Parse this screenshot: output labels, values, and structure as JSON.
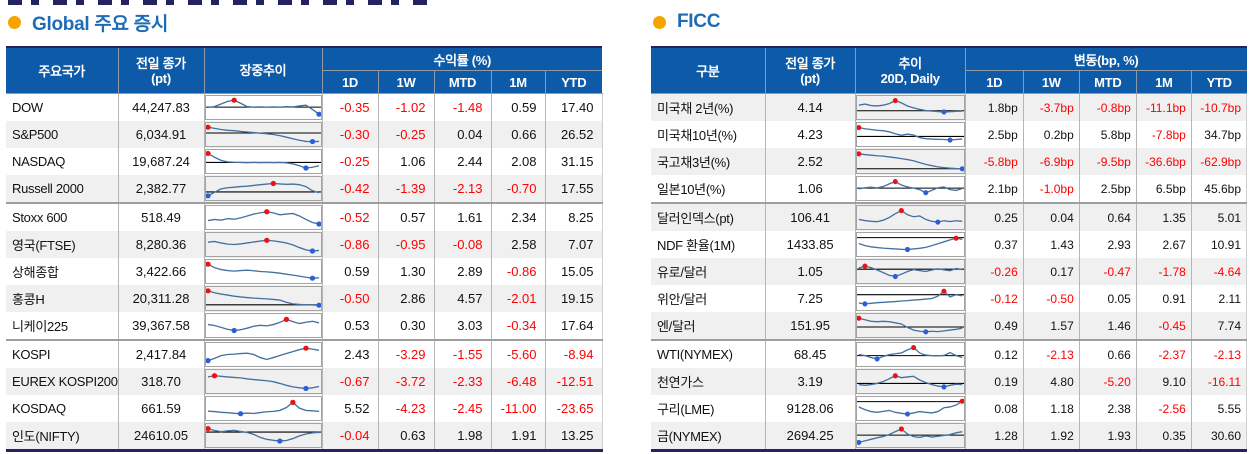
{
  "colors": {
    "header_bg": "#0d5aa8",
    "title_blue": "#1e6cb5",
    "bullet_orange": "#F7A400",
    "negative_red": "#fe0000",
    "text_dark": "#111111",
    "stripe_gray": "#f0f0f0",
    "spark_line": "#44719f",
    "spark_max_dot": "#ee1111",
    "spark_min_dot": "#2b5fd9",
    "spark_ref_line": "#000000",
    "table_frame": "#23235f"
  },
  "left_table": {
    "title": "Global 주요 증시",
    "headers": {
      "name": "주요국가",
      "close_lines": [
        "전일 종가",
        "(pt)"
      ],
      "trend_lines": [
        "장중추이"
      ],
      "returns_group": "수익률 (%)",
      "periods": [
        "1D",
        "1W",
        "MTD",
        "1M",
        "YTD"
      ]
    },
    "rows": [
      {
        "name": "DOW",
        "close": "44,247.83",
        "values": [
          "-0.35",
          "-1.02",
          "-1.48",
          "0.59",
          "17.40"
        ],
        "shade": false,
        "sep": false,
        "ref": 0.52,
        "spark": [
          0.5,
          0.55,
          0.68,
          0.82,
          0.88,
          0.72,
          0.55,
          0.52,
          0.53,
          0.52,
          0.53,
          0.52,
          0.54,
          0.53,
          0.58,
          0.62,
          0.4,
          0.15
        ]
      },
      {
        "name": "S&P500",
        "close": "6,034.91",
        "values": [
          "-0.30",
          "-0.25",
          "0.04",
          "0.66",
          "26.52"
        ],
        "shade": true,
        "sep": false,
        "ref": 0.58,
        "spark": [
          0.88,
          0.82,
          0.76,
          0.72,
          0.7,
          0.66,
          0.63,
          0.6,
          0.57,
          0.54,
          0.5,
          0.44,
          0.36,
          0.28,
          0.2,
          0.14,
          0.13,
          0.14
        ]
      },
      {
        "name": "NASDAQ",
        "close": "19,687.24",
        "values": [
          "-0.25",
          "1.06",
          "2.44",
          "2.08",
          "31.15"
        ],
        "shade": false,
        "sep": false,
        "ref": 0.45,
        "spark": [
          0.92,
          0.72,
          0.56,
          0.48,
          0.46,
          0.45,
          0.44,
          0.45,
          0.44,
          0.45,
          0.44,
          0.45,
          0.43,
          0.38,
          0.28,
          0.16,
          0.2,
          0.28
        ]
      },
      {
        "name": "Russell 2000",
        "close": "2,382.77",
        "values": [
          "-0.42",
          "-1.39",
          "-2.13",
          "-0.70",
          "17.55"
        ],
        "shade": true,
        "sep": false,
        "ref": 0.32,
        "spark": [
          0.12,
          0.3,
          0.48,
          0.54,
          0.57,
          0.6,
          0.62,
          0.66,
          0.7,
          0.73,
          0.76,
          0.74,
          0.72,
          0.73,
          0.7,
          0.6,
          0.38,
          0.28
        ]
      },
      {
        "name": "Stoxx 600",
        "close": "518.49",
        "values": [
          "-0.52",
          "0.57",
          "1.61",
          "2.34",
          "8.25"
        ],
        "shade": false,
        "sep": true,
        "ref": null,
        "spark": [
          0.34,
          0.4,
          0.36,
          0.44,
          0.41,
          0.48,
          0.58,
          0.68,
          0.74,
          0.8,
          0.74,
          0.64,
          0.68,
          0.71,
          0.58,
          0.4,
          0.24,
          0.16
        ]
      },
      {
        "name": "영국(FTSE)",
        "close": "8,280.36",
        "values": [
          "-0.86",
          "-0.95",
          "-0.08",
          "2.58",
          "7.07"
        ],
        "shade": true,
        "sep": false,
        "ref": null,
        "spark": [
          0.62,
          0.66,
          0.58,
          0.52,
          0.5,
          0.53,
          0.58,
          0.63,
          0.68,
          0.72,
          0.69,
          0.64,
          0.58,
          0.48,
          0.34,
          0.22,
          0.16,
          0.19
        ]
      },
      {
        "name": "상해종합",
        "close": "3,422.66",
        "values": [
          "0.59",
          "1.30",
          "2.89",
          "-0.86",
          "15.05"
        ],
        "shade": false,
        "sep": false,
        "ref": null,
        "spark": [
          0.88,
          0.7,
          0.6,
          0.55,
          0.52,
          0.55,
          0.57,
          0.54,
          0.5,
          0.48,
          0.45,
          0.41,
          0.36,
          0.31,
          0.26,
          0.2,
          0.15,
          0.17
        ]
      },
      {
        "name": "홍콩H",
        "close": "20,311.28",
        "values": [
          "-0.50",
          "2.86",
          "4.57",
          "-2.01",
          "19.15"
        ],
        "shade": true,
        "sep": false,
        "ref": 0.17,
        "spark": [
          0.9,
          0.8,
          0.73,
          0.68,
          0.62,
          0.58,
          0.55,
          0.52,
          0.5,
          0.48,
          0.45,
          0.42,
          0.3,
          0.22,
          0.19,
          0.17,
          0.16,
          0.15
        ]
      },
      {
        "name": "니케이225",
        "close": "39,367.58",
        "values": [
          "0.53",
          "0.30",
          "3.03",
          "-0.34",
          "17.64"
        ],
        "shade": false,
        "sep": false,
        "ref": null,
        "spark": [
          0.55,
          0.5,
          0.4,
          0.3,
          0.24,
          0.28,
          0.36,
          0.46,
          0.51,
          0.48,
          0.55,
          0.66,
          0.82,
          0.7,
          0.6,
          0.67,
          0.72,
          0.64
        ]
      },
      {
        "name": "KOSPI",
        "close": "2,417.84",
        "values": [
          "2.43",
          "-3.29",
          "-1.55",
          "-5.60",
          "-8.94"
        ],
        "shade": false,
        "sep": true,
        "ref": null,
        "spark": [
          0.18,
          0.3,
          0.44,
          0.5,
          0.52,
          0.55,
          0.57,
          0.5,
          0.34,
          0.24,
          0.34,
          0.45,
          0.55,
          0.65,
          0.75,
          0.83,
          0.78,
          0.72
        ]
      },
      {
        "name": "EUREX KOSPI200",
        "close": "318.70",
        "values": [
          "-0.67",
          "-3.72",
          "-2.33",
          "-6.48",
          "-12.51"
        ],
        "shade": true,
        "sep": false,
        "ref": null,
        "spark": [
          0.74,
          0.8,
          0.77,
          0.74,
          0.71,
          0.69,
          0.64,
          0.6,
          0.57,
          0.54,
          0.49,
          0.4,
          0.3,
          0.22,
          0.17,
          0.14,
          0.17,
          0.24
        ]
      },
      {
        "name": "KOSDAQ",
        "close": "661.59",
        "values": [
          "5.52",
          "-4.23",
          "-2.45",
          "-11.00",
          "-23.65"
        ],
        "shade": false,
        "sep": false,
        "ref": null,
        "spark": [
          0.36,
          0.34,
          0.3,
          0.28,
          0.25,
          0.23,
          0.26,
          0.24,
          0.29,
          0.33,
          0.35,
          0.4,
          0.55,
          0.82,
          0.52,
          0.4,
          0.38,
          0.35
        ]
      },
      {
        "name": "인도(NIFTY)",
        "close": "24610.05",
        "values": [
          "-0.04",
          "0.63",
          "1.98",
          "1.91",
          "13.25"
        ],
        "shade": true,
        "sep": false,
        "ref": 0.68,
        "spark": [
          0.86,
          0.76,
          0.7,
          0.74,
          0.77,
          0.71,
          0.66,
          0.56,
          0.4,
          0.3,
          0.25,
          0.21,
          0.24,
          0.34,
          0.48,
          0.58,
          0.64,
          0.66
        ]
      }
    ]
  },
  "right_table": {
    "title": "FICC",
    "headers": {
      "name": "구분",
      "close_lines": [
        "전일 종가",
        "(pt)"
      ],
      "trend_lines": [
        "추이",
        "20D, Daily"
      ],
      "returns_group": "변동(bp, %)",
      "periods": [
        "1D",
        "1W",
        "MTD",
        "1M",
        "YTD"
      ]
    },
    "rows": [
      {
        "name": "미국채 2년(%)",
        "close": "4.14",
        "values": [
          "1.8bp",
          "-3.7bp",
          "-0.8bp",
          "-11.1bp",
          "-10.7bp"
        ],
        "shade": true,
        "sep": false,
        "ref": 0.33,
        "spark": [
          0.62,
          0.68,
          0.6,
          0.58,
          0.62,
          0.7,
          0.86,
          0.74,
          0.58,
          0.48,
          0.4,
          0.34,
          0.31,
          0.29,
          0.27,
          0.28,
          0.3,
          0.31
        ]
      },
      {
        "name": "미국채10년(%)",
        "close": "4.23",
        "values": [
          "2.5bp",
          "0.2bp",
          "5.8bp",
          "-7.8bp",
          "34.7bp"
        ],
        "shade": false,
        "sep": false,
        "ref": 0.4,
        "spark": [
          0.86,
          0.8,
          0.76,
          0.72,
          0.7,
          0.64,
          0.54,
          0.46,
          0.52,
          0.47,
          0.34,
          0.28,
          0.26,
          0.25,
          0.24,
          0.21,
          0.24,
          0.27
        ]
      },
      {
        "name": "국고채3년(%)",
        "close": "2.52",
        "values": [
          "-5.8bp",
          "-6.9bp",
          "-9.5bp",
          "-36.6bp",
          "-62.9bp"
        ],
        "shade": true,
        "sep": false,
        "ref": 0.12,
        "spark": [
          0.9,
          0.86,
          0.83,
          0.8,
          0.78,
          0.74,
          0.7,
          0.65,
          0.6,
          0.54,
          0.44,
          0.35,
          0.28,
          0.22,
          0.18,
          0.15,
          0.13,
          0.12
        ]
      },
      {
        "name": "일본10년(%)",
        "close": "1.06",
        "values": [
          "2.1bp",
          "-1.0bp",
          "2.5bp",
          "6.5bp",
          "45.6bp"
        ],
        "shade": false,
        "sep": false,
        "ref": 0.52,
        "spark": [
          0.48,
          0.54,
          0.57,
          0.53,
          0.6,
          0.74,
          0.86,
          0.68,
          0.58,
          0.52,
          0.44,
          0.28,
          0.4,
          0.54,
          0.58,
          0.44,
          0.4,
          0.5
        ]
      },
      {
        "name": "달러인덱스(pt)",
        "close": "106.41",
        "values": [
          "0.25",
          "0.04",
          "0.64",
          "1.35",
          "5.01"
        ],
        "shade": true,
        "sep": true,
        "ref": null,
        "spark": [
          0.4,
          0.34,
          0.3,
          0.28,
          0.36,
          0.5,
          0.7,
          0.86,
          0.64,
          0.54,
          0.58,
          0.4,
          0.3,
          0.26,
          0.33,
          0.29,
          0.33,
          0.3
        ]
      },
      {
        "name": "NDF 환율(1M)",
        "close": "1433.85",
        "values": [
          "0.37",
          "1.43",
          "2.93",
          "2.67",
          "10.91"
        ],
        "shade": false,
        "sep": false,
        "ref": 0.86,
        "spark": [
          0.55,
          0.44,
          0.38,
          0.34,
          0.31,
          0.29,
          0.27,
          0.25,
          0.24,
          0.27,
          0.3,
          0.35,
          0.44,
          0.54,
          0.64,
          0.74,
          0.83,
          0.77
        ]
      },
      {
        "name": "유로/달러",
        "close": "1.05",
        "values": [
          "-0.26",
          "0.17",
          "-0.47",
          "-1.78",
          "-4.64"
        ],
        "shade": true,
        "sep": false,
        "ref": 0.62,
        "spark": [
          0.68,
          0.78,
          0.7,
          0.58,
          0.44,
          0.3,
          0.24,
          0.36,
          0.5,
          0.6,
          0.55,
          0.5,
          0.58,
          0.64,
          0.59,
          0.54,
          0.66,
          0.6
        ]
      },
      {
        "name": "위안/달러",
        "close": "7.25",
        "values": [
          "-0.12",
          "-0.50",
          "0.05",
          "0.91",
          "2.11"
        ],
        "shade": false,
        "sep": false,
        "ref": 0.7,
        "spark": [
          0.26,
          0.22,
          0.25,
          0.28,
          0.3,
          0.32,
          0.34,
          0.37,
          0.39,
          0.42,
          0.44,
          0.47,
          0.5,
          0.62,
          0.88,
          0.58,
          0.7,
          0.64
        ]
      },
      {
        "name": "엔/달러",
        "close": "151.95",
        "values": [
          "0.49",
          "1.57",
          "1.46",
          "-0.45",
          "7.74"
        ],
        "shade": true,
        "sep": false,
        "ref": 0.42,
        "spark": [
          0.88,
          0.8,
          0.72,
          0.7,
          0.72,
          0.7,
          0.64,
          0.58,
          0.4,
          0.26,
          0.2,
          0.17,
          0.2,
          0.18,
          0.22,
          0.26,
          0.3,
          0.36
        ]
      },
      {
        "name": "WTI(NYMEX)",
        "close": "68.45",
        "values": [
          "0.12",
          "-2.13",
          "0.66",
          "-2.37",
          "-2.13"
        ],
        "shade": false,
        "sep": true,
        "ref": 0.44,
        "spark": [
          0.5,
          0.44,
          0.34,
          0.27,
          0.4,
          0.49,
          0.54,
          0.58,
          0.74,
          0.86,
          0.58,
          0.47,
          0.44,
          0.43,
          0.45,
          0.6,
          0.44,
          0.34
        ]
      },
      {
        "name": "천연가스",
        "close": "3.19",
        "values": [
          "0.19",
          "4.80",
          "-5.20",
          "9.10",
          "-16.11"
        ],
        "shade": true,
        "sep": false,
        "ref": 0.4,
        "spark": [
          0.34,
          0.3,
          0.34,
          0.4,
          0.5,
          0.64,
          0.8,
          0.7,
          0.74,
          0.77,
          0.58,
          0.44,
          0.34,
          0.26,
          0.22,
          0.3,
          0.36,
          0.34
        ]
      },
      {
        "name": "구리(LME)",
        "close": "9128.06",
        "values": [
          "0.08",
          "1.18",
          "2.38",
          "-2.56",
          "5.55"
        ],
        "shade": false,
        "sep": false,
        "ref": 0.86,
        "spark": [
          0.58,
          0.44,
          0.34,
          0.3,
          0.35,
          0.4,
          0.3,
          0.25,
          0.21,
          0.27,
          0.34,
          0.3,
          0.27,
          0.34,
          0.54,
          0.58,
          0.68,
          0.88
        ]
      },
      {
        "name": "금(NYMEX)",
        "close": "2694.25",
        "values": [
          "1.28",
          "1.92",
          "1.93",
          "0.35",
          "30.60"
        ],
        "shade": true,
        "sep": false,
        "ref": 0.52,
        "spark": [
          0.14,
          0.22,
          0.3,
          0.38,
          0.45,
          0.55,
          0.7,
          0.84,
          0.58,
          0.44,
          0.4,
          0.48,
          0.42,
          0.46,
          0.5,
          0.55,
          0.64,
          0.7
        ]
      }
    ]
  }
}
